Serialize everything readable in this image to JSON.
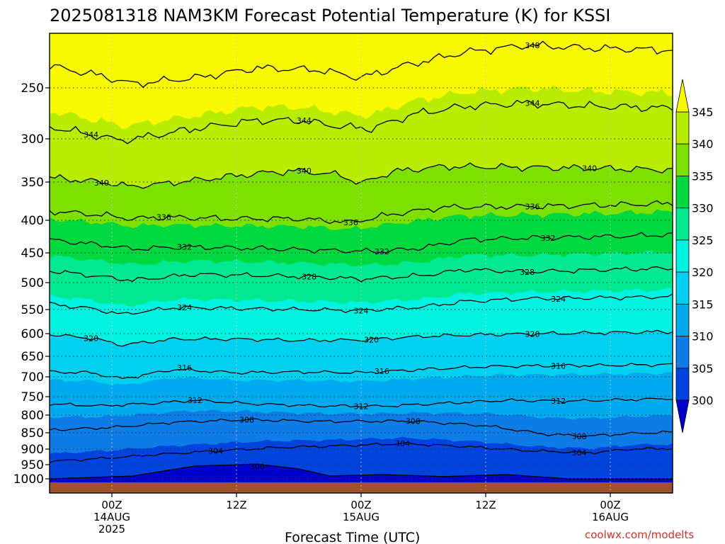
{
  "chart_data": {
    "type": "heatmap",
    "title": "2025081318 NAM3KM Forecast Potential Temperature (K) for KSSI",
    "xlabel": "Forecast Time (UTC)",
    "credit": "coolwx.com/modelts",
    "y_ticks": [
      "250",
      "300",
      "350",
      "400",
      "450",
      "500",
      "550",
      "600",
      "650",
      "700",
      "750",
      "800",
      "850",
      "900",
      "950",
      "1000"
    ],
    "y_levels": [
      250,
      300,
      350,
      400,
      450,
      500,
      550,
      600,
      650,
      700,
      750,
      800,
      850,
      900,
      950,
      1000
    ],
    "x_ticks": [
      {
        "hour": 6,
        "lines": [
          "00Z",
          "14AUG",
          "2025"
        ]
      },
      {
        "hour": 18,
        "lines": [
          "12Z"
        ]
      },
      {
        "hour": 30,
        "lines": [
          "00Z",
          "15AUG"
        ]
      },
      {
        "hour": 42,
        "lines": [
          "12Z"
        ]
      },
      {
        "hour": 54,
        "lines": [
          "00Z",
          "16AUG"
        ]
      }
    ],
    "x_range_hours": [
      0,
      60
    ],
    "y_range_hpa": [
      200,
      1010
    ],
    "colorbar": {
      "labels": [
        "345",
        "340",
        "335",
        "330",
        "325",
        "320",
        "315",
        "310",
        "305",
        "300"
      ],
      "levels": [
        300,
        305,
        310,
        315,
        320,
        325,
        330,
        335,
        340,
        345
      ],
      "colors": [
        "#0000cc",
        "#0044dd",
        "#0e7ce6",
        "#00aaee",
        "#00d0f0",
        "#00f2e0",
        "#00e890",
        "#00d840",
        "#7ee000",
        "#b8ec00",
        "#f8f800"
      ]
    },
    "isotherm_interval": 4,
    "isotherm_levels": [
      300,
      304,
      308,
      312,
      316,
      320,
      324,
      328,
      332,
      336,
      340,
      344,
      348
    ],
    "contour_labels": [
      {
        "text": "348",
        "hour": 46.5,
        "p": 207
      },
      {
        "text": "344",
        "hour": 46.5,
        "p": 265
      },
      {
        "text": "344",
        "hour": 24.5,
        "p": 282
      },
      {
        "text": "344",
        "hour": 4,
        "p": 296
      },
      {
        "text": "340",
        "hour": 24.5,
        "p": 337
      },
      {
        "text": "340",
        "hour": 52,
        "p": 334
      },
      {
        "text": "340",
        "hour": 5,
        "p": 351
      },
      {
        "text": "336",
        "hour": 46.5,
        "p": 382
      },
      {
        "text": "336",
        "hour": 11,
        "p": 396
      },
      {
        "text": "336",
        "hour": 29,
        "p": 403
      },
      {
        "text": "332",
        "hour": 48,
        "p": 427
      },
      {
        "text": "332",
        "hour": 13,
        "p": 441
      },
      {
        "text": "332",
        "hour": 32,
        "p": 448
      },
      {
        "text": "328",
        "hour": 46,
        "p": 482
      },
      {
        "text": "328",
        "hour": 25,
        "p": 490
      },
      {
        "text": "324",
        "hour": 49,
        "p": 530
      },
      {
        "text": "324",
        "hour": 13,
        "p": 546
      },
      {
        "text": "324",
        "hour": 30,
        "p": 552
      },
      {
        "text": "320",
        "hour": 46.5,
        "p": 601
      },
      {
        "text": "320",
        "hour": 4,
        "p": 610
      },
      {
        "text": "320",
        "hour": 31,
        "p": 613
      },
      {
        "text": "316",
        "hour": 49,
        "p": 673
      },
      {
        "text": "316",
        "hour": 13,
        "p": 678
      },
      {
        "text": "316",
        "hour": 32,
        "p": 686
      },
      {
        "text": "312",
        "hour": 14,
        "p": 760
      },
      {
        "text": "312",
        "hour": 49,
        "p": 762
      },
      {
        "text": "312",
        "hour": 30,
        "p": 776
      },
      {
        "text": "308",
        "hour": 19,
        "p": 813
      },
      {
        "text": "308",
        "hour": 35,
        "p": 817
      },
      {
        "text": "308",
        "hour": 51,
        "p": 861
      },
      {
        "text": "304",
        "hour": 34,
        "p": 883
      },
      {
        "text": "304",
        "hour": 16,
        "p": 906
      },
      {
        "text": "304",
        "hour": 51,
        "p": 911
      },
      {
        "text": "300",
        "hour": 20,
        "p": 956
      }
    ]
  }
}
